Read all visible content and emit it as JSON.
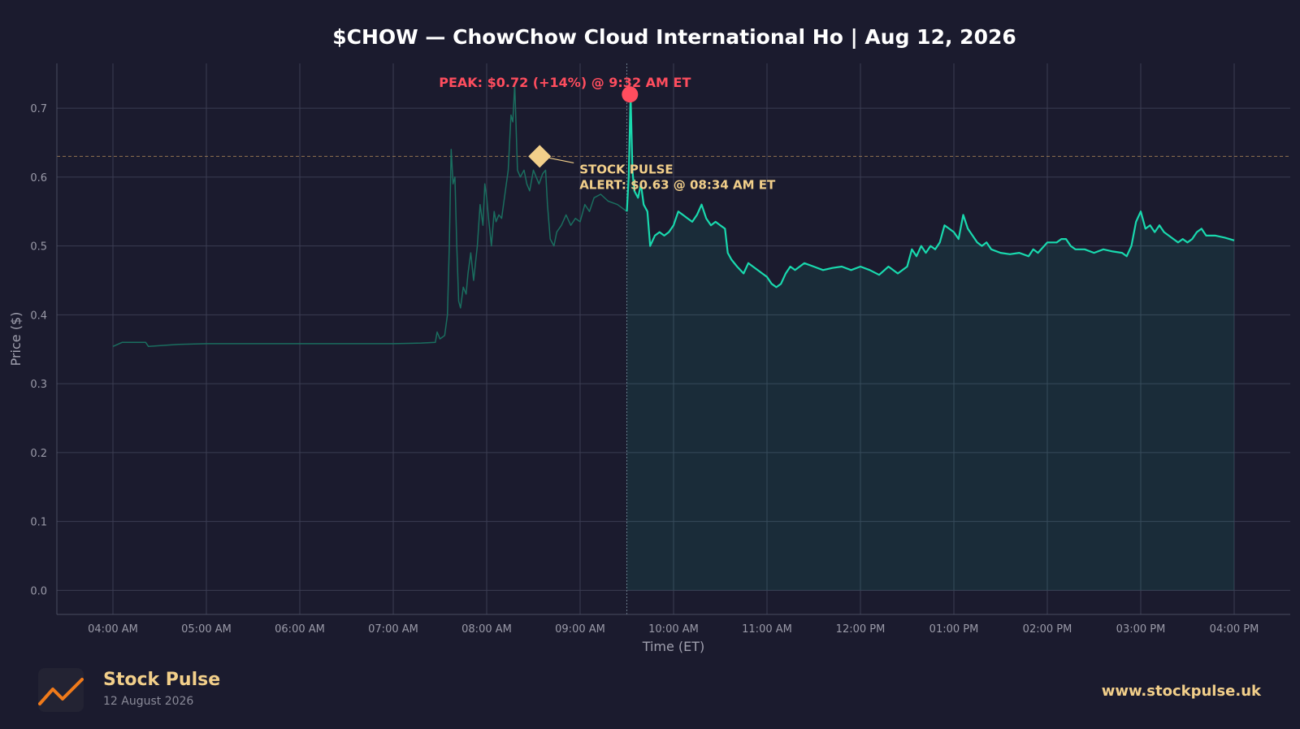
{
  "title": "$CHOW — ChowChow Cloud International Ho  |  Aug 12, 2026",
  "colors": {
    "background": "#1b1b2e",
    "line": "#19d9ae",
    "premarket_line": "#1a6e5f",
    "peak": "#ff4d5e",
    "alert": "#f2cf8a",
    "grid": "#3b3d52"
  },
  "footer": {
    "brand": "Stock Pulse",
    "date": "12 August 2026",
    "url": "www.stockpulse.uk",
    "logo_icon": "chart-trend-icon"
  },
  "chart_data": {
    "type": "line",
    "title": "$CHOW — ChowChow Cloud International Ho  |  Aug 12, 2026",
    "xlabel": "Time (ET)",
    "ylabel": "Price ($)",
    "ylim": [
      -0.035,
      0.765
    ],
    "yticks": [
      0.0,
      0.1,
      0.2,
      0.3,
      0.4,
      0.5,
      0.6,
      0.7
    ],
    "ytick_labels": [
      "0.0",
      "0.1",
      "0.2",
      "0.3",
      "0.4",
      "0.5",
      "0.6",
      "0.7"
    ],
    "xlim_hours": [
      3.4,
      16.6
    ],
    "xticks_hours": [
      4,
      5,
      6,
      7,
      8,
      9,
      10,
      11,
      12,
      13,
      14,
      15,
      16
    ],
    "xtick_labels": [
      "04:00 AM",
      "05:00 AM",
      "06:00 AM",
      "07:00 AM",
      "08:00 AM",
      "09:00 AM",
      "10:00 AM",
      "11:00 AM",
      "12:00 PM",
      "01:00 PM",
      "02:00 PM",
      "03:00 PM",
      "04:00 PM"
    ],
    "grid": true,
    "market_open_hour": 9.5,
    "reference_line": 0.63,
    "series": [
      {
        "segment": "premarket",
        "points": [
          [
            4.0,
            0.354
          ],
          [
            4.1,
            0.36
          ],
          [
            4.35,
            0.36
          ],
          [
            4.38,
            0.354
          ],
          [
            4.7,
            0.357
          ],
          [
            5.0,
            0.358
          ],
          [
            6.0,
            0.358
          ],
          [
            7.0,
            0.358
          ],
          [
            7.3,
            0.359
          ],
          [
            7.45,
            0.36
          ],
          [
            7.47,
            0.375
          ],
          [
            7.5,
            0.365
          ],
          [
            7.55,
            0.37
          ],
          [
            7.58,
            0.4
          ],
          [
            7.6,
            0.5
          ],
          [
            7.62,
            0.64
          ],
          [
            7.64,
            0.59
          ],
          [
            7.66,
            0.6
          ],
          [
            7.68,
            0.5
          ],
          [
            7.7,
            0.42
          ],
          [
            7.72,
            0.41
          ],
          [
            7.75,
            0.44
          ],
          [
            7.78,
            0.43
          ],
          [
            7.8,
            0.46
          ],
          [
            7.83,
            0.49
          ],
          [
            7.86,
            0.45
          ],
          [
            7.9,
            0.5
          ],
          [
            7.93,
            0.56
          ],
          [
            7.96,
            0.53
          ],
          [
            7.98,
            0.59
          ],
          [
            8.0,
            0.57
          ],
          [
            8.02,
            0.54
          ],
          [
            8.05,
            0.5
          ],
          [
            8.08,
            0.55
          ],
          [
            8.1,
            0.535
          ],
          [
            8.13,
            0.545
          ],
          [
            8.16,
            0.54
          ],
          [
            8.2,
            0.58
          ],
          [
            8.23,
            0.61
          ],
          [
            8.26,
            0.69
          ],
          [
            8.28,
            0.68
          ],
          [
            8.3,
            0.735
          ],
          [
            8.33,
            0.61
          ],
          [
            8.36,
            0.6
          ],
          [
            8.4,
            0.61
          ],
          [
            8.43,
            0.59
          ],
          [
            8.46,
            0.58
          ],
          [
            8.5,
            0.61
          ],
          [
            8.53,
            0.6
          ],
          [
            8.56,
            0.59
          ],
          [
            8.6,
            0.605
          ],
          [
            8.63,
            0.61
          ],
          [
            8.65,
            0.56
          ],
          [
            8.68,
            0.51
          ],
          [
            8.72,
            0.5
          ],
          [
            8.75,
            0.52
          ],
          [
            8.8,
            0.53
          ],
          [
            8.85,
            0.545
          ],
          [
            8.9,
            0.53
          ],
          [
            8.95,
            0.54
          ],
          [
            9.0,
            0.535
          ],
          [
            9.05,
            0.56
          ],
          [
            9.1,
            0.55
          ],
          [
            9.15,
            0.57
          ],
          [
            9.22,
            0.575
          ],
          [
            9.3,
            0.565
          ],
          [
            9.4,
            0.56
          ],
          [
            9.5,
            0.55
          ]
        ]
      },
      {
        "segment": "regular",
        "points": [
          [
            9.5,
            0.55
          ],
          [
            9.52,
            0.6
          ],
          [
            9.54,
            0.72
          ],
          [
            9.56,
            0.61
          ],
          [
            9.58,
            0.58
          ],
          [
            9.62,
            0.57
          ],
          [
            9.65,
            0.59
          ],
          [
            9.68,
            0.56
          ],
          [
            9.72,
            0.55
          ],
          [
            9.75,
            0.5
          ],
          [
            9.8,
            0.515
          ],
          [
            9.85,
            0.52
          ],
          [
            9.9,
            0.515
          ],
          [
            9.95,
            0.52
          ],
          [
            10.0,
            0.53
          ],
          [
            10.05,
            0.55
          ],
          [
            10.1,
            0.545
          ],
          [
            10.15,
            0.54
          ],
          [
            10.2,
            0.535
          ],
          [
            10.25,
            0.545
          ],
          [
            10.3,
            0.56
          ],
          [
            10.35,
            0.54
          ],
          [
            10.4,
            0.53
          ],
          [
            10.45,
            0.535
          ],
          [
            10.5,
            0.53
          ],
          [
            10.55,
            0.525
          ],
          [
            10.58,
            0.49
          ],
          [
            10.62,
            0.48
          ],
          [
            10.68,
            0.47
          ],
          [
            10.75,
            0.46
          ],
          [
            10.8,
            0.475
          ],
          [
            10.85,
            0.47
          ],
          [
            10.9,
            0.465
          ],
          [
            10.95,
            0.46
          ],
          [
            11.0,
            0.455
          ],
          [
            11.05,
            0.445
          ],
          [
            11.1,
            0.44
          ],
          [
            11.15,
            0.445
          ],
          [
            11.2,
            0.46
          ],
          [
            11.25,
            0.47
          ],
          [
            11.3,
            0.465
          ],
          [
            11.4,
            0.475
          ],
          [
            11.5,
            0.47
          ],
          [
            11.6,
            0.465
          ],
          [
            11.7,
            0.468
          ],
          [
            11.8,
            0.47
          ],
          [
            11.9,
            0.465
          ],
          [
            12.0,
            0.47
          ],
          [
            12.1,
            0.465
          ],
          [
            12.2,
            0.458
          ],
          [
            12.3,
            0.47
          ],
          [
            12.4,
            0.46
          ],
          [
            12.5,
            0.47
          ],
          [
            12.55,
            0.495
          ],
          [
            12.6,
            0.485
          ],
          [
            12.65,
            0.5
          ],
          [
            12.7,
            0.49
          ],
          [
            12.75,
            0.5
          ],
          [
            12.8,
            0.495
          ],
          [
            12.85,
            0.505
          ],
          [
            12.9,
            0.53
          ],
          [
            12.95,
            0.525
          ],
          [
            13.0,
            0.52
          ],
          [
            13.05,
            0.51
          ],
          [
            13.1,
            0.545
          ],
          [
            13.15,
            0.525
          ],
          [
            13.2,
            0.515
          ],
          [
            13.25,
            0.505
          ],
          [
            13.3,
            0.5
          ],
          [
            13.35,
            0.505
          ],
          [
            13.4,
            0.495
          ],
          [
            13.5,
            0.49
          ],
          [
            13.6,
            0.488
          ],
          [
            13.7,
            0.49
          ],
          [
            13.8,
            0.485
          ],
          [
            13.85,
            0.495
          ],
          [
            13.9,
            0.49
          ],
          [
            14.0,
            0.505
          ],
          [
            14.1,
            0.505
          ],
          [
            14.15,
            0.51
          ],
          [
            14.2,
            0.51
          ],
          [
            14.25,
            0.5
          ],
          [
            14.3,
            0.495
          ],
          [
            14.4,
            0.495
          ],
          [
            14.5,
            0.49
          ],
          [
            14.6,
            0.495
          ],
          [
            14.7,
            0.492
          ],
          [
            14.8,
            0.49
          ],
          [
            14.85,
            0.485
          ],
          [
            14.9,
            0.5
          ],
          [
            14.95,
            0.535
          ],
          [
            15.0,
            0.55
          ],
          [
            15.05,
            0.525
          ],
          [
            15.1,
            0.53
          ],
          [
            15.15,
            0.52
          ],
          [
            15.2,
            0.53
          ],
          [
            15.25,
            0.52
          ],
          [
            15.3,
            0.515
          ],
          [
            15.35,
            0.51
          ],
          [
            15.4,
            0.505
          ],
          [
            15.45,
            0.51
          ],
          [
            15.5,
            0.505
          ],
          [
            15.55,
            0.51
          ],
          [
            15.6,
            0.52
          ],
          [
            15.65,
            0.525
          ],
          [
            15.7,
            0.515
          ],
          [
            15.8,
            0.515
          ],
          [
            15.9,
            0.512
          ],
          [
            16.0,
            0.508
          ]
        ]
      }
    ],
    "annotations": {
      "peak": {
        "label": "PEAK: $0.72 (+14%) @ 9:32 AM ET",
        "x_hour": 9.533,
        "y": 0.72
      },
      "alert": {
        "label_line1": "STOCK PULSE",
        "label_line2": "ALERT: $0.63 @ 08:34 AM ET",
        "x_hour": 8.567,
        "y": 0.63
      }
    }
  }
}
